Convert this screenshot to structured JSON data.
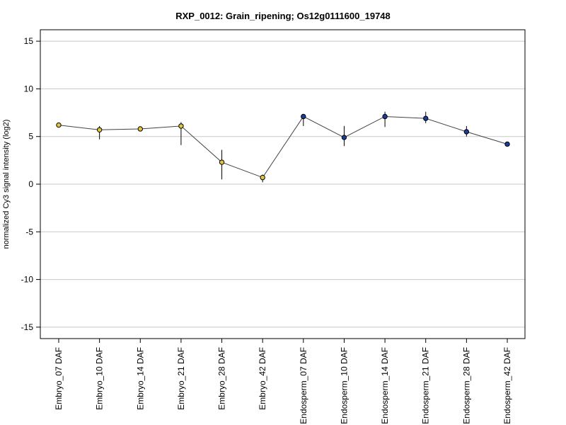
{
  "chart_data": {
    "type": "line",
    "title": "RXP_0012: Grain_ripening; Os12g0111600_19748",
    "xlabel": "",
    "ylabel": "normalized Cy3 signal intensity (log2)",
    "ylim": [
      -16.2,
      16.2
    ],
    "yticks": [
      -15,
      -10,
      -5,
      0,
      5,
      10,
      15
    ],
    "grid": true,
    "categories": [
      "Embryo_07 DAF",
      "Embryo_10 DAF",
      "Embryo_14 DAF",
      "Embryo_21 DAF",
      "Embryo_28 DAF",
      "Embryo_42 DAF",
      "Endosperm_07 DAF",
      "Endosperm_10 DAF",
      "Endosperm_14 DAF",
      "Endosperm_21 DAF",
      "Endosperm_28 DAF",
      "Endosperm_42 DAF"
    ],
    "series": [
      {
        "values": [
          6.2,
          5.7,
          5.8,
          6.1,
          2.3,
          0.7,
          7.1,
          4.9,
          7.1,
          6.9,
          5.5,
          4.2
        ],
        "error_low": [
          6.0,
          4.7,
          5.6,
          4.1,
          0.5,
          0.2,
          6.1,
          4.0,
          6.0,
          6.4,
          5.0,
          4.1
        ],
        "error_high": [
          6.4,
          6.1,
          6.0,
          6.5,
          3.6,
          1.0,
          7.3,
          6.1,
          7.6,
          7.6,
          6.1,
          4.3
        ],
        "point_colors": [
          "#e0c43a",
          "#e0c43a",
          "#e0c43a",
          "#e0c43a",
          "#e0c43a",
          "#e0c43a",
          "#1a3c9a",
          "#1a3c9a",
          "#1a3c9a",
          "#1a3c9a",
          "#1a3c9a",
          "#1a3c9a"
        ]
      }
    ],
    "colors": {
      "embryo": "#e0c43a",
      "endosperm": "#1a3c9a",
      "line": "#444444",
      "grid": "#c8c8c8"
    }
  }
}
